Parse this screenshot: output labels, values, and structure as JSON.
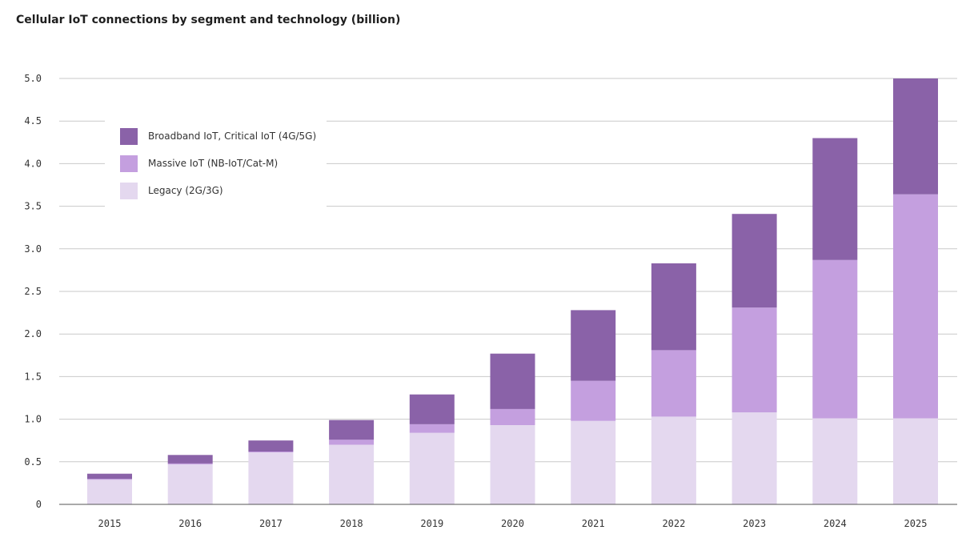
{
  "chart_data": {
    "type": "bar",
    "stacked": true,
    "title": "Cellular IoT connections by segment and technology (billion)",
    "categories": [
      "2015",
      "2016",
      "2017",
      "2018",
      "2019",
      "2020",
      "2021",
      "2022",
      "2023",
      "2024",
      "2025"
    ],
    "series": [
      {
        "name": "Legacy (2G/3G)",
        "color": "#e4d8ef",
        "values": [
          0.29,
          0.47,
          0.61,
          0.7,
          0.84,
          0.93,
          0.98,
          1.03,
          1.08,
          1.01,
          1.01
        ]
      },
      {
        "name": "Massive IoT (NB-IoT/Cat-M)",
        "color": "#c49fdf",
        "values": [
          0.01,
          0.01,
          0.01,
          0.06,
          0.1,
          0.19,
          0.47,
          0.78,
          1.23,
          1.86,
          2.63
        ]
      },
      {
        "name": "Broadband IoT, Critical IoT (4G/5G)",
        "color": "#8a62a8",
        "values": [
          0.06,
          0.1,
          0.13,
          0.23,
          0.35,
          0.65,
          0.83,
          1.02,
          1.1,
          1.43,
          1.36
        ]
      }
    ],
    "legend_order": [
      2,
      1,
      0
    ],
    "legend_position": "top-left",
    "ylim": [
      0,
      5.0
    ],
    "yticks": [
      "0",
      "0.5",
      "1.0",
      "1.5",
      "2.0",
      "2.5",
      "3.0",
      "3.5",
      "4.0",
      "4.5",
      "5.0"
    ],
    "grid": true,
    "xlabel": "",
    "ylabel": ""
  }
}
